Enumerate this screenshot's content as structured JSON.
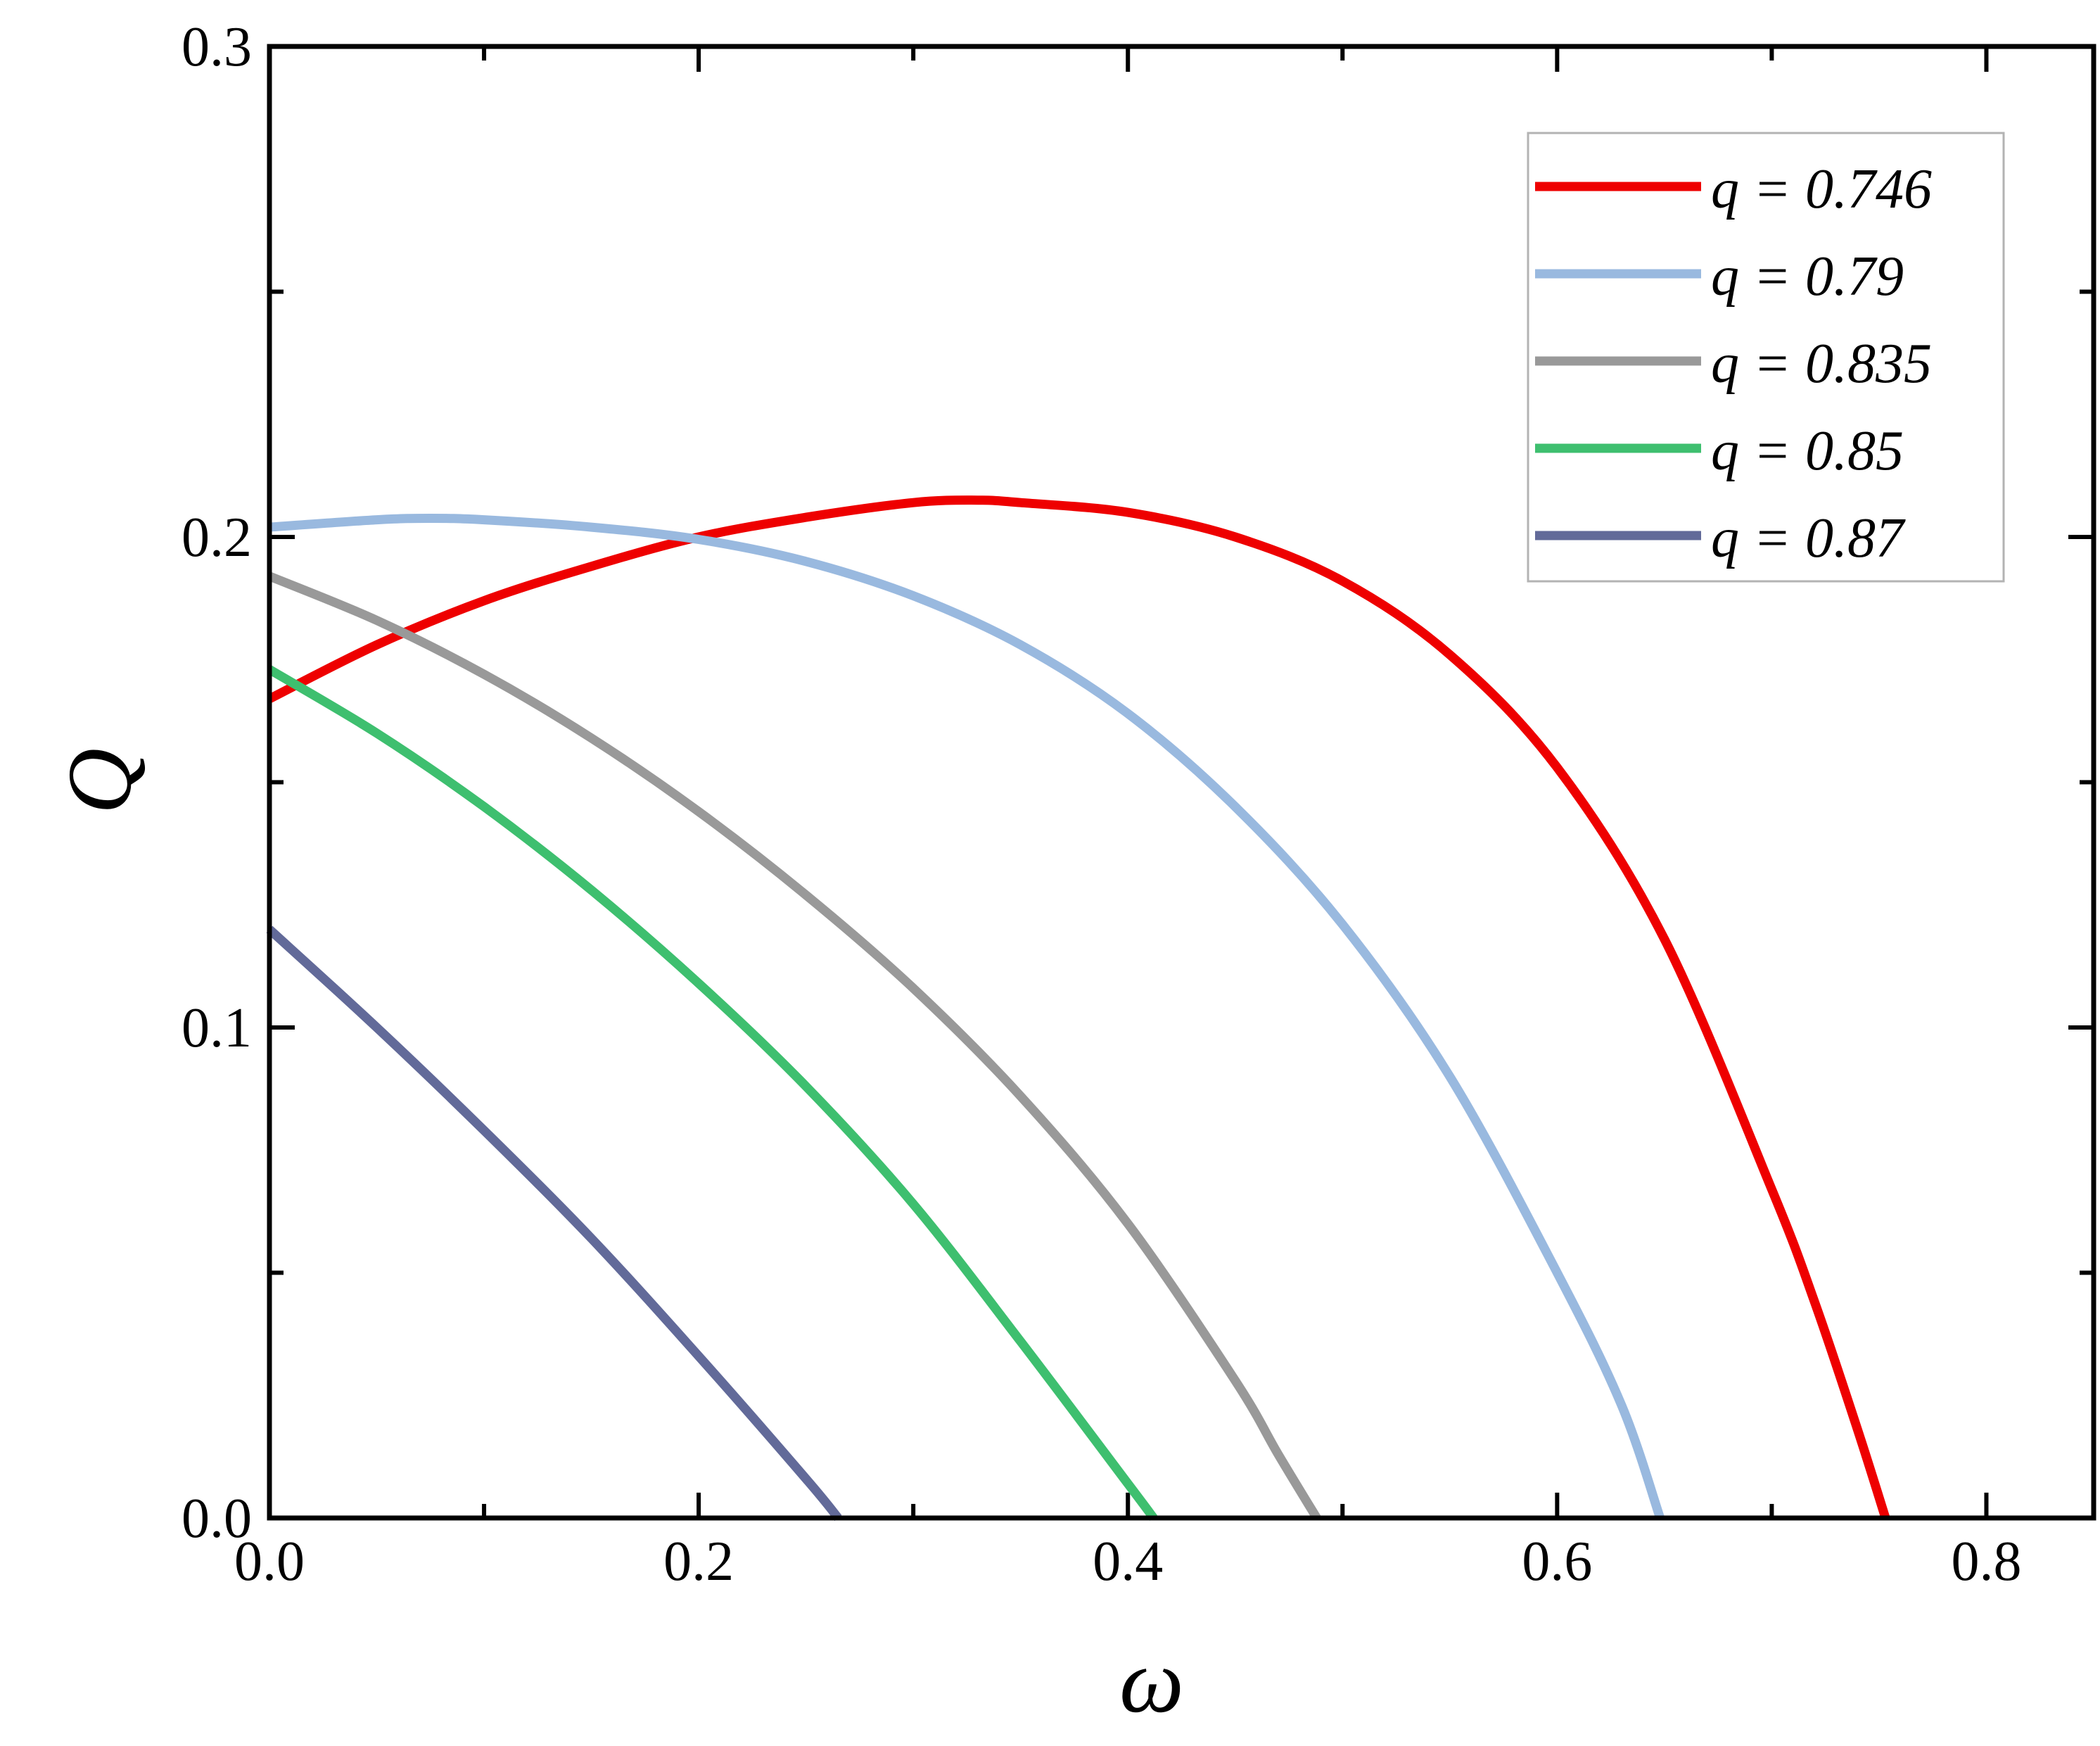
{
  "chart_data": {
    "type": "line",
    "xlabel": "ω",
    "ylabel": "Q",
    "xlim": [
      0.0,
      0.85
    ],
    "ylim": [
      0.0,
      0.3
    ],
    "x_ticks": [
      "0.0",
      "0.2",
      "0.4",
      "0.6",
      "0.8"
    ],
    "y_ticks": [
      "0.0",
      "0.1",
      "0.2",
      "0.3"
    ],
    "grid": false,
    "legend_position": "top-right",
    "series": [
      {
        "name": "q = 0.746",
        "color": "#ee0000",
        "x": [
          0.0,
          0.05,
          0.1,
          0.15,
          0.2,
          0.25,
          0.3,
          0.33,
          0.35,
          0.4,
          0.45,
          0.5,
          0.55,
          0.6,
          0.65,
          0.7,
          0.72,
          0.74,
          0.753
        ],
        "y": [
          0.167,
          0.178,
          0.187,
          0.194,
          0.2,
          0.204,
          0.207,
          0.2075,
          0.207,
          0.205,
          0.2,
          0.191,
          0.176,
          0.153,
          0.118,
          0.067,
          0.044,
          0.018,
          0.0
        ]
      },
      {
        "name": "q = 0.79",
        "color": "#99b9df",
        "x": [
          0.0,
          0.05,
          0.075,
          0.1,
          0.15,
          0.2,
          0.25,
          0.3,
          0.35,
          0.4,
          0.45,
          0.5,
          0.55,
          0.6,
          0.63,
          0.648
        ],
        "y": [
          0.202,
          0.2035,
          0.2038,
          0.2035,
          0.202,
          0.1995,
          0.195,
          0.188,
          0.178,
          0.164,
          0.145,
          0.121,
          0.09,
          0.05,
          0.023,
          0.0
        ]
      },
      {
        "name": "q = 0.835",
        "color": "#999999",
        "x": [
          0.0,
          0.05,
          0.1,
          0.15,
          0.2,
          0.25,
          0.3,
          0.35,
          0.4,
          0.45,
          0.47,
          0.488
        ],
        "y": [
          0.192,
          0.183,
          0.172,
          0.159,
          0.144,
          0.127,
          0.108,
          0.086,
          0.06,
          0.028,
          0.013,
          0.0
        ]
      },
      {
        "name": "q = 0.85",
        "color": "#3ebf6f",
        "x": [
          0.0,
          0.05,
          0.1,
          0.15,
          0.2,
          0.25,
          0.3,
          0.35,
          0.4,
          0.412
        ],
        "y": [
          0.173,
          0.16,
          0.145,
          0.128,
          0.109,
          0.088,
          0.064,
          0.036,
          0.007,
          0.0
        ]
      },
      {
        "name": "q = 0.87",
        "color": "#626a99",
        "x": [
          0.0,
          0.05,
          0.1,
          0.15,
          0.2,
          0.25,
          0.265
        ],
        "y": [
          0.12,
          0.1,
          0.079,
          0.057,
          0.033,
          0.008,
          0.0
        ]
      }
    ]
  }
}
